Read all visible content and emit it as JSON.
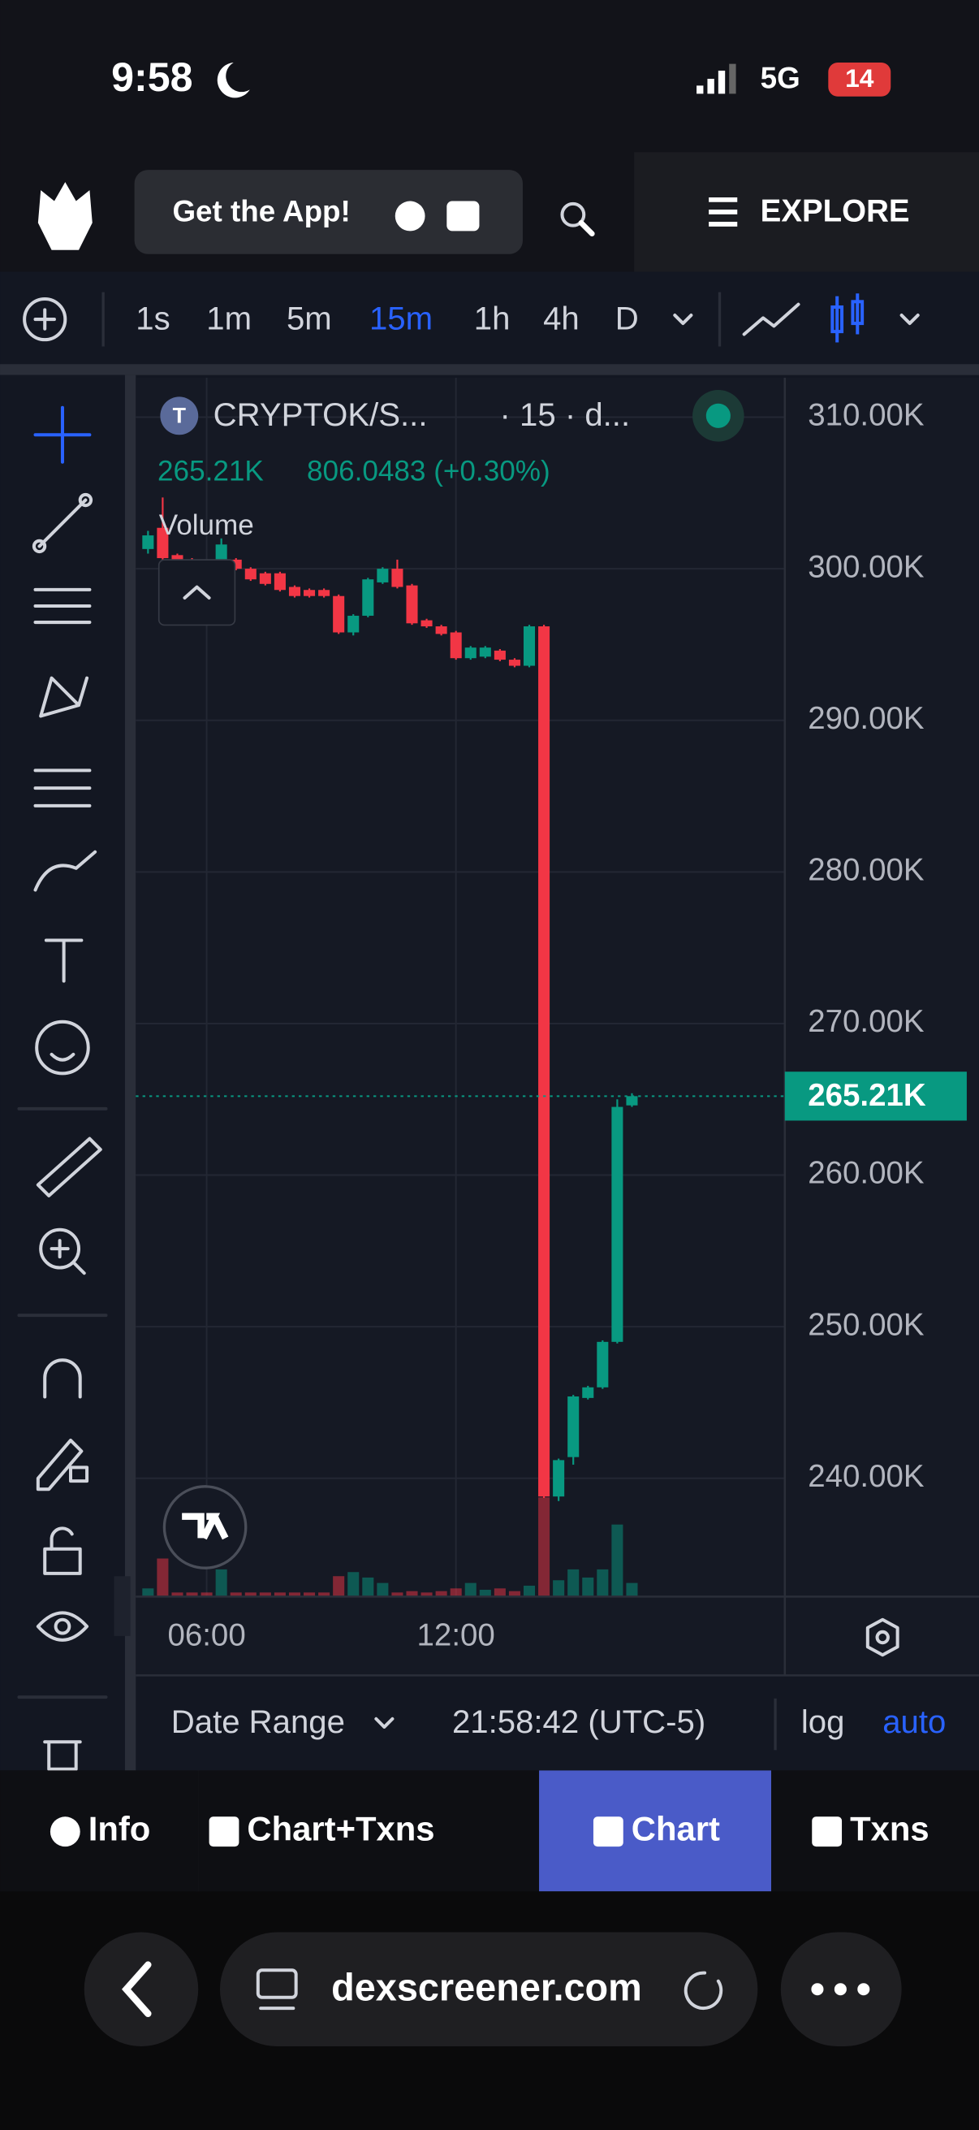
{
  "status_bar": {
    "time": "9:58",
    "network": "5G",
    "battery": "14"
  },
  "header": {
    "banner": "Get the App!",
    "menu": "EXPLORE"
  },
  "toolbar": {
    "intervals": [
      "1s",
      "1m",
      "5m",
      "15m",
      "1h",
      "4h",
      "D"
    ],
    "active_interval": 3
  },
  "chart_data": {
    "type": "candlestick",
    "title": "CRYPTOK/S...",
    "subtitle": "· 15 · d...",
    "last_price": {
      "value": 265.21,
      "label": "265.21K"
    },
    "change": "806.0483 (+0.30%)",
    "volume_label": "Volume",
    "categories": [
      null,
      null,
      null,
      null,
      "06:00",
      null,
      null,
      null,
      null,
      null,
      null,
      null,
      null,
      null,
      null,
      null,
      null,
      null,
      null,
      null,
      null,
      "12:00",
      null,
      null,
      null,
      null,
      null,
      null,
      null,
      null,
      null,
      null,
      null,
      null
    ],
    "open": [
      301.3,
      302.7,
      300.9,
      300.6,
      300.3,
      300.2,
      300.6,
      300.0,
      299.7,
      299.7,
      298.8,
      298.6,
      298.6,
      298.2,
      295.8,
      296.9,
      299.1,
      300.0,
      298.9,
      296.6,
      296.2,
      295.8,
      294.1,
      294.2,
      294.6,
      294.0,
      293.6,
      296.2,
      238.8,
      241.4,
      245.3,
      246.0,
      249.0,
      264.6
    ],
    "high": [
      302.5,
      304.7,
      301.0,
      300.7,
      300.4,
      302.0,
      300.7,
      300.1,
      299.8,
      299.8,
      298.9,
      298.7,
      298.7,
      298.3,
      297.0,
      299.4,
      300.1,
      300.6,
      299.0,
      296.7,
      296.3,
      295.9,
      294.9,
      294.9,
      294.7,
      294.1,
      296.3,
      296.3,
      241.3,
      245.5,
      246.1,
      249.1,
      265.0,
      265.4
    ],
    "low": [
      301.0,
      300.5,
      300.1,
      299.8,
      299.9,
      300.1,
      299.9,
      299.2,
      298.9,
      298.5,
      298.1,
      298.1,
      298.1,
      295.7,
      295.6,
      296.8,
      299.0,
      298.7,
      296.3,
      296.1,
      295.6,
      294.0,
      294.0,
      294.1,
      293.9,
      293.5,
      293.5,
      238.7,
      238.5,
      240.9,
      245.2,
      245.9,
      248.9,
      264.5
    ],
    "close": [
      302.2,
      300.7,
      300.2,
      299.9,
      300.0,
      301.6,
      300.0,
      299.3,
      299.0,
      298.6,
      298.2,
      298.2,
      298.2,
      295.8,
      296.9,
      299.3,
      300.0,
      298.8,
      296.4,
      296.2,
      295.7,
      294.1,
      294.8,
      294.8,
      294.0,
      293.6,
      296.2,
      238.8,
      241.2,
      245.4,
      246.0,
      249.0,
      264.5,
      265.21
    ],
    "volume": [
      6,
      28,
      3,
      3,
      3,
      20,
      3,
      3,
      3,
      3,
      3,
      3,
      3,
      15,
      18,
      14,
      10,
      3,
      4,
      3,
      4,
      6,
      10,
      5,
      6,
      4,
      8,
      73,
      12,
      20,
      14,
      20,
      53,
      10
    ],
    "up_color": "#089981",
    "down_color": "#f23645",
    "ylim": [
      232.2,
      312.6
    ],
    "yticks": [
      {
        "value": 310,
        "label": "310.00K"
      },
      {
        "value": 300,
        "label": "300.00K"
      },
      {
        "value": 290,
        "label": "290.00K"
      },
      {
        "value": 280,
        "label": "280.00K"
      },
      {
        "value": 270,
        "label": "270.00K"
      },
      {
        "value": 260,
        "label": "260.00K"
      },
      {
        "value": 250,
        "label": "250.00K"
      },
      {
        "value": 240,
        "label": "240.00K"
      }
    ],
    "grid": true
  },
  "footer_bar": {
    "date_range": "Date Range",
    "clock": "21:58:42 (UTC-5)",
    "log": "log",
    "auto": "auto"
  },
  "tabs": {
    "items": [
      "Info",
      "Chart+Txns",
      "Chart",
      "Txns"
    ],
    "active": 2
  },
  "browser": {
    "url": "dexscreener.com"
  }
}
